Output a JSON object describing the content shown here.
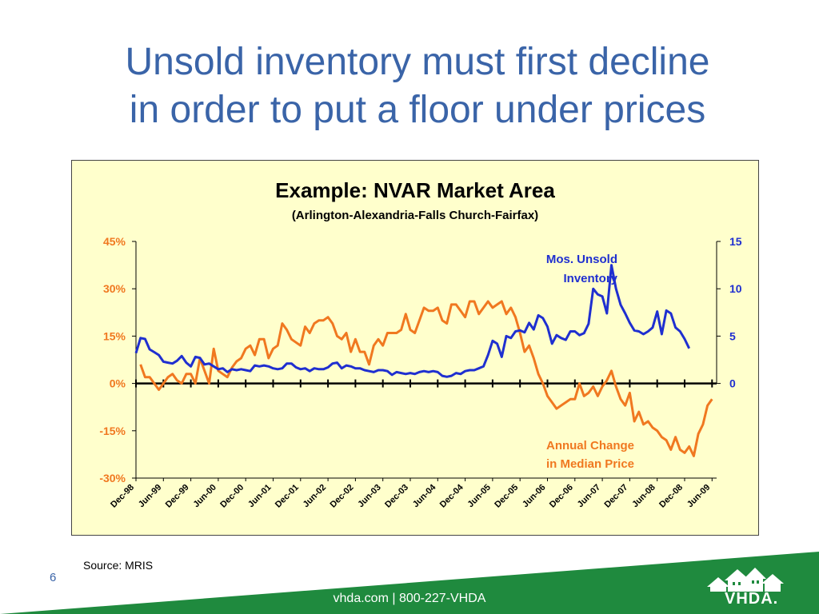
{
  "slide": {
    "title_line1": "Unsold inventory must first decline",
    "title_line2": "in order to put a floor under prices",
    "source": "Source:  MRIS",
    "page_number": "6",
    "footer": "vhda.com | 800-227-VHDA",
    "logo_text": "VHDA."
  },
  "colors": {
    "title": "#3a64a8",
    "chart_background": "#ffffcc",
    "inventory_series": "#1f2fd0",
    "price_series": "#f07820",
    "footer_green": "#1f8a3e"
  },
  "icons": [
    "vhda-houses-logo"
  ],
  "chart_data": {
    "type": "line",
    "title": "Example:  NVAR Market Area",
    "subtitle": "(Arlington-Alexandria-Falls Church-Fairfax)",
    "x_tick_labels": [
      "Dec-98",
      "Jun-99",
      "Dec-99",
      "Jun-00",
      "Dec-00",
      "Jun-01",
      "Dec-01",
      "Jun-02",
      "Dec-02",
      "Jun-03",
      "Dec-03",
      "Jun-04",
      "Dec-04",
      "Jun-05",
      "Dec-05",
      "Jun-06",
      "Dec-06",
      "Jun-07",
      "Dec-07",
      "Jun-08",
      "Dec-08",
      "Jun-09"
    ],
    "x_range": [
      "Dec-98",
      "Jul-09"
    ],
    "left_axis": {
      "ticks": [
        "45%",
        "30%",
        "15%",
        "0%",
        "-15%",
        "-30%"
      ],
      "range": [
        -30,
        45
      ],
      "unit": "%"
    },
    "right_axis": {
      "ticks": [
        "15",
        "10",
        "5",
        "0"
      ],
      "range": [
        -10,
        15
      ]
    },
    "grid": false,
    "series": [
      {
        "name": "Annual Change in Median Price",
        "axis": "left",
        "color": "#f07820",
        "points": [
          [
            1,
            6
          ],
          [
            2,
            2
          ],
          [
            3,
            2
          ],
          [
            4,
            0
          ],
          [
            5,
            -2
          ],
          [
            6,
            0
          ],
          [
            7,
            2
          ],
          [
            8,
            3
          ],
          [
            9,
            1
          ],
          [
            10,
            0
          ],
          [
            11,
            3
          ],
          [
            12,
            3
          ],
          [
            13,
            0
          ],
          [
            14,
            8
          ],
          [
            15,
            4
          ],
          [
            16,
            0
          ],
          [
            17,
            11
          ],
          [
            18,
            4
          ],
          [
            19,
            3
          ],
          [
            20,
            2
          ],
          [
            21,
            5
          ],
          [
            22,
            7
          ],
          [
            23,
            8
          ],
          [
            24,
            11
          ],
          [
            25,
            12
          ],
          [
            26,
            9
          ],
          [
            27,
            14
          ],
          [
            28,
            14
          ],
          [
            29,
            8
          ],
          [
            30,
            11
          ],
          [
            31,
            12
          ],
          [
            32,
            19
          ],
          [
            33,
            17
          ],
          [
            34,
            14
          ],
          [
            35,
            13
          ],
          [
            36,
            12
          ],
          [
            37,
            18
          ],
          [
            38,
            16
          ],
          [
            39,
            19
          ],
          [
            40,
            20
          ],
          [
            41,
            20
          ],
          [
            42,
            21
          ],
          [
            43,
            19
          ],
          [
            44,
            15
          ],
          [
            45,
            14
          ],
          [
            46,
            16
          ],
          [
            47,
            10
          ],
          [
            48,
            14
          ],
          [
            49,
            10
          ],
          [
            50,
            10
          ],
          [
            51,
            6
          ],
          [
            52,
            12
          ],
          [
            53,
            14
          ],
          [
            54,
            12
          ],
          [
            55,
            16
          ],
          [
            56,
            16
          ],
          [
            57,
            16
          ],
          [
            58,
            17
          ],
          [
            59,
            22
          ],
          [
            60,
            17
          ],
          [
            61,
            16
          ],
          [
            62,
            20
          ],
          [
            63,
            24
          ],
          [
            64,
            23
          ],
          [
            65,
            23
          ],
          [
            66,
            24
          ],
          [
            67,
            20
          ],
          [
            68,
            19
          ],
          [
            69,
            25
          ],
          [
            70,
            25
          ],
          [
            71,
            23
          ],
          [
            72,
            21
          ],
          [
            73,
            26
          ],
          [
            74,
            26
          ],
          [
            75,
            22
          ],
          [
            76,
            24
          ],
          [
            77,
            26
          ],
          [
            78,
            24
          ],
          [
            79,
            25
          ],
          [
            80,
            26
          ],
          [
            81,
            22
          ],
          [
            82,
            24
          ],
          [
            83,
            21
          ],
          [
            84,
            16
          ],
          [
            85,
            10
          ],
          [
            86,
            12
          ],
          [
            87,
            8
          ],
          [
            88,
            3
          ],
          [
            89,
            0
          ],
          [
            90,
            -4
          ],
          [
            91,
            -6
          ],
          [
            92,
            -8
          ],
          [
            93,
            -7
          ],
          [
            94,
            -6
          ],
          [
            95,
            -5
          ],
          [
            96,
            -5
          ],
          [
            97,
            0
          ],
          [
            98,
            -4
          ],
          [
            99,
            -3
          ],
          [
            100,
            -1
          ],
          [
            101,
            -4
          ],
          [
            102,
            -1
          ],
          [
            103,
            1
          ],
          [
            104,
            4
          ],
          [
            105,
            -1
          ],
          [
            106,
            -5
          ],
          [
            107,
            -7
          ],
          [
            108,
            -3
          ],
          [
            109,
            -12
          ],
          [
            110,
            -9
          ],
          [
            111,
            -13
          ],
          [
            112,
            -12
          ],
          [
            113,
            -14
          ],
          [
            114,
            -15
          ],
          [
            115,
            -17
          ],
          [
            116,
            -18
          ],
          [
            117,
            -21
          ],
          [
            118,
            -17
          ],
          [
            119,
            -21
          ],
          [
            120,
            -22
          ],
          [
            121,
            -20
          ],
          [
            122,
            -23
          ],
          [
            123,
            -16
          ],
          [
            124,
            -13
          ],
          [
            125,
            -7
          ],
          [
            126,
            -5
          ]
        ],
        "label_line1": "Annual Change",
        "label_line2": "in Median Price"
      },
      {
        "name": "Mos. Unsold Inventory",
        "axis": "right",
        "color": "#1f2fd0",
        "points": [
          [
            0,
            3.2
          ],
          [
            1,
            4.8
          ],
          [
            2,
            4.7
          ],
          [
            3,
            3.6
          ],
          [
            4,
            3.3
          ],
          [
            5,
            3.0
          ],
          [
            6,
            2.3
          ],
          [
            7,
            2.2
          ],
          [
            8,
            2.1
          ],
          [
            9,
            2.4
          ],
          [
            10,
            2.9
          ],
          [
            11,
            2.2
          ],
          [
            12,
            1.8
          ],
          [
            13,
            2.8
          ],
          [
            14,
            2.7
          ],
          [
            15,
            2.0
          ],
          [
            16,
            2.1
          ],
          [
            17,
            1.8
          ],
          [
            18,
            1.5
          ],
          [
            19,
            1.6
          ],
          [
            20,
            1.2
          ],
          [
            21,
            1.5
          ],
          [
            22,
            1.4
          ],
          [
            23,
            1.5
          ],
          [
            24,
            1.4
          ],
          [
            25,
            1.3
          ],
          [
            26,
            1.9
          ],
          [
            27,
            1.8
          ],
          [
            28,
            1.9
          ],
          [
            29,
            1.8
          ],
          [
            30,
            1.6
          ],
          [
            31,
            1.5
          ],
          [
            32,
            1.6
          ],
          [
            33,
            2.1
          ],
          [
            34,
            2.1
          ],
          [
            35,
            1.7
          ],
          [
            36,
            1.5
          ],
          [
            37,
            1.6
          ],
          [
            38,
            1.3
          ],
          [
            39,
            1.6
          ],
          [
            40,
            1.5
          ],
          [
            41,
            1.5
          ],
          [
            42,
            1.7
          ],
          [
            43,
            2.1
          ],
          [
            44,
            2.2
          ],
          [
            45,
            1.6
          ],
          [
            46,
            1.9
          ],
          [
            47,
            1.8
          ],
          [
            48,
            1.6
          ],
          [
            49,
            1.6
          ],
          [
            50,
            1.4
          ],
          [
            51,
            1.3
          ],
          [
            52,
            1.2
          ],
          [
            53,
            1.4
          ],
          [
            54,
            1.4
          ],
          [
            55,
            1.3
          ],
          [
            56,
            0.9
          ],
          [
            57,
            1.2
          ],
          [
            58,
            1.1
          ],
          [
            59,
            1.0
          ],
          [
            60,
            1.1
          ],
          [
            61,
            1.0
          ],
          [
            62,
            1.2
          ],
          [
            63,
            1.3
          ],
          [
            64,
            1.2
          ],
          [
            65,
            1.3
          ],
          [
            66,
            1.2
          ],
          [
            67,
            0.8
          ],
          [
            68,
            0.7
          ],
          [
            69,
            0.8
          ],
          [
            70,
            1.1
          ],
          [
            71,
            1.0
          ],
          [
            72,
            1.3
          ],
          [
            73,
            1.4
          ],
          [
            74,
            1.4
          ],
          [
            75,
            1.6
          ],
          [
            76,
            1.8
          ],
          [
            77,
            3.0
          ],
          [
            78,
            4.5
          ],
          [
            79,
            4.2
          ],
          [
            80,
            2.8
          ],
          [
            81,
            5.0
          ],
          [
            82,
            4.8
          ],
          [
            83,
            5.5
          ],
          [
            84,
            5.6
          ],
          [
            85,
            5.4
          ],
          [
            86,
            6.4
          ],
          [
            87,
            5.7
          ],
          [
            88,
            7.2
          ],
          [
            89,
            6.9
          ],
          [
            90,
            6.0
          ],
          [
            91,
            4.2
          ],
          [
            92,
            5.1
          ],
          [
            93,
            4.8
          ],
          [
            94,
            4.6
          ],
          [
            95,
            5.5
          ],
          [
            96,
            5.5
          ],
          [
            97,
            5.1
          ],
          [
            98,
            5.3
          ],
          [
            99,
            6.3
          ],
          [
            100,
            10.0
          ],
          [
            101,
            9.4
          ],
          [
            102,
            9.2
          ],
          [
            103,
            7.4
          ],
          [
            104,
            12.5
          ],
          [
            105,
            10.0
          ],
          [
            106,
            8.3
          ],
          [
            107,
            7.4
          ],
          [
            108,
            6.4
          ],
          [
            109,
            5.6
          ],
          [
            110,
            5.5
          ],
          [
            111,
            5.2
          ],
          [
            112,
            5.5
          ],
          [
            113,
            5.9
          ],
          [
            114,
            7.6
          ],
          [
            115,
            5.2
          ],
          [
            116,
            7.7
          ],
          [
            117,
            7.4
          ],
          [
            118,
            5.9
          ],
          [
            119,
            5.5
          ],
          [
            120,
            4.7
          ],
          [
            121,
            3.7
          ]
        ],
        "label_line1": "Mos. Unsold",
        "label_line2": "Inventory"
      }
    ]
  }
}
